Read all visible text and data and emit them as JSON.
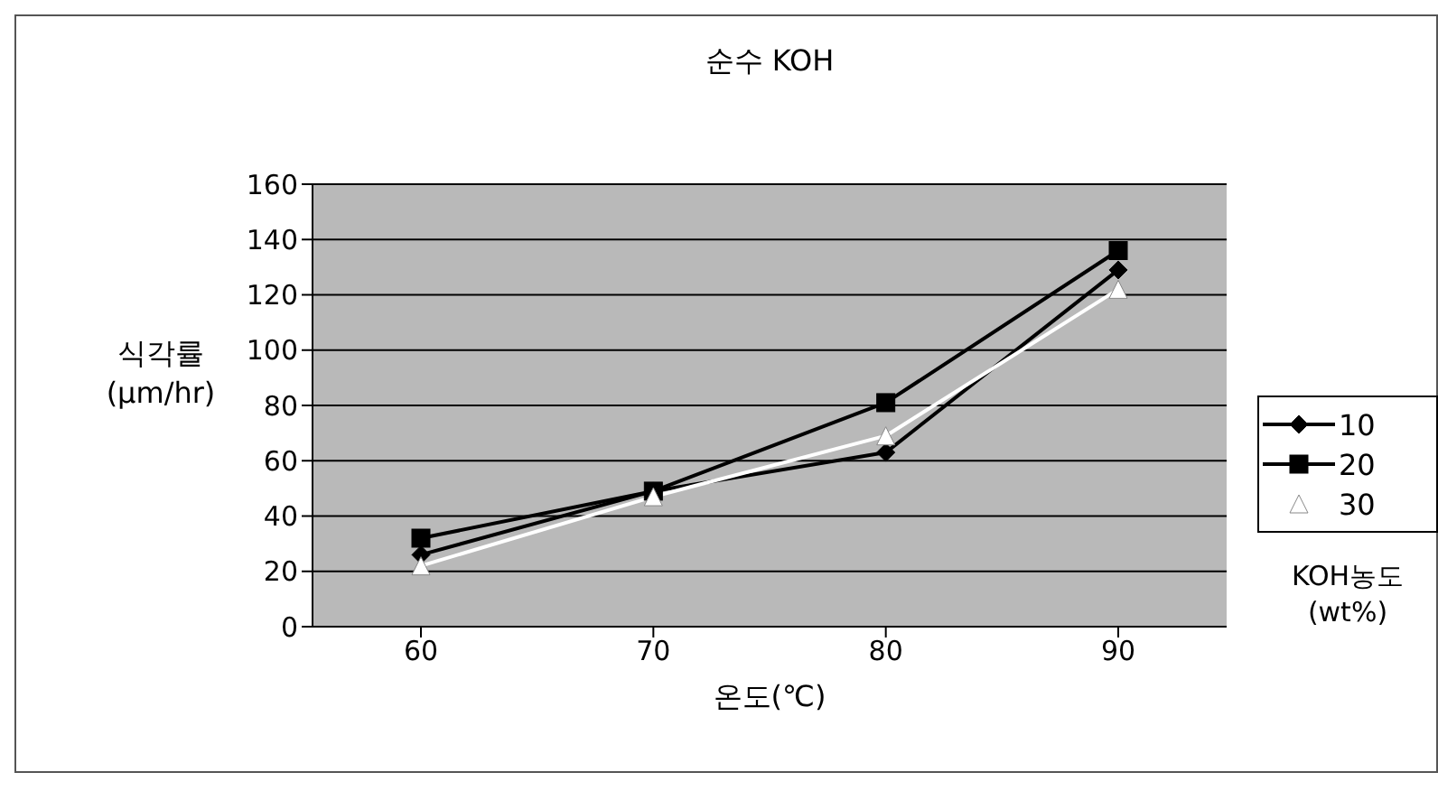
{
  "chart_data": {
    "type": "line",
    "title": "순수 KOH",
    "xlabel": "온도(℃)",
    "ylabel": "식각률 (μm/hr)",
    "legend_title": "KOH농도 (wt%)",
    "categories": [
      "60",
      "70",
      "80",
      "90"
    ],
    "series": [
      {
        "name": "10",
        "color": "#000000",
        "marker": "diamond",
        "values": [
          26,
          49,
          63,
          129
        ]
      },
      {
        "name": "20",
        "color": "#000000",
        "marker": "square",
        "values": [
          32,
          49,
          81,
          136
        ]
      },
      {
        "name": "30",
        "color": "#ffffff",
        "marker": "triangle",
        "values": [
          22,
          47,
          69,
          122
        ]
      }
    ],
    "ylim": [
      0,
      160
    ],
    "yticks": [
      0,
      20,
      40,
      60,
      80,
      100,
      120,
      140,
      160
    ],
    "grid": "y",
    "legend": "right"
  }
}
